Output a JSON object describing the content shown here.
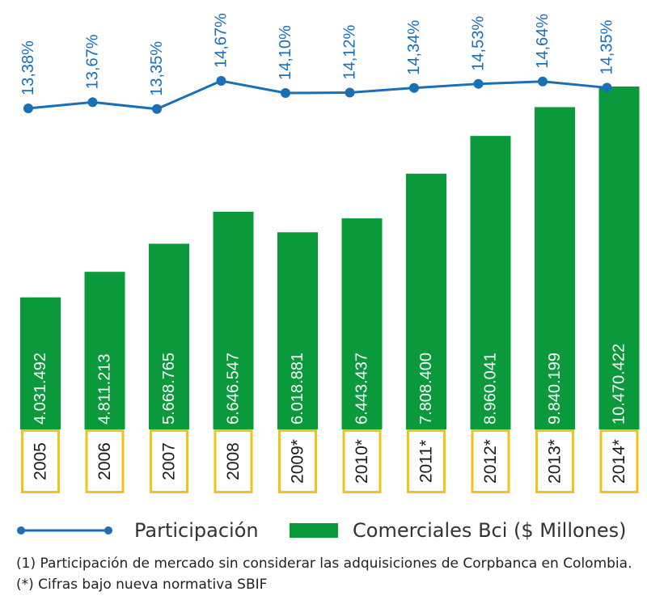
{
  "chart_data": {
    "type": "bar+line",
    "categories": [
      "2005",
      "2006",
      "2007",
      "2008",
      "2009*",
      "2010*",
      "2011*",
      "2012*",
      "2013*",
      "2014*"
    ],
    "series": [
      {
        "name": "Comerciales Bci ($ Millones)",
        "type": "bar",
        "values": [
          4031492,
          4811213,
          5668765,
          6646547,
          6018881,
          6443437,
          7808400,
          8960041,
          9840199,
          10470422
        ],
        "labels": [
          "4.031.492",
          "4.811.213",
          "5.668.765",
          "6.646.547",
          "6.018.881",
          "6.443.437",
          "7.808.400",
          "8.960.041",
          "9.840.199",
          "10.470.422"
        ],
        "color": "#0a9a3b"
      },
      {
        "name": "Participación",
        "type": "line",
        "values": [
          13.38,
          13.67,
          13.35,
          14.67,
          14.1,
          14.12,
          14.34,
          14.53,
          14.64,
          14.35
        ],
        "labels": [
          "13,38%",
          "13,67%",
          "13,35%",
          "14,67%",
          "14,10%",
          "14,12%",
          "14,34%",
          "14,53%",
          "14,64%",
          "14,35%"
        ],
        "color": "#1a6fb5"
      }
    ],
    "category_box_color": "#f2c21b",
    "legend": {
      "line_label": "Participación",
      "bar_label": "Comerciales Bci ($ Millones)",
      "position": "bottom"
    }
  },
  "footnotes": [
    "(1) Participación de mercado sin considerar las adquisiciones de Corpbanca en Colombia.",
    "(*) Cifras bajo nueva normativa SBIF"
  ]
}
